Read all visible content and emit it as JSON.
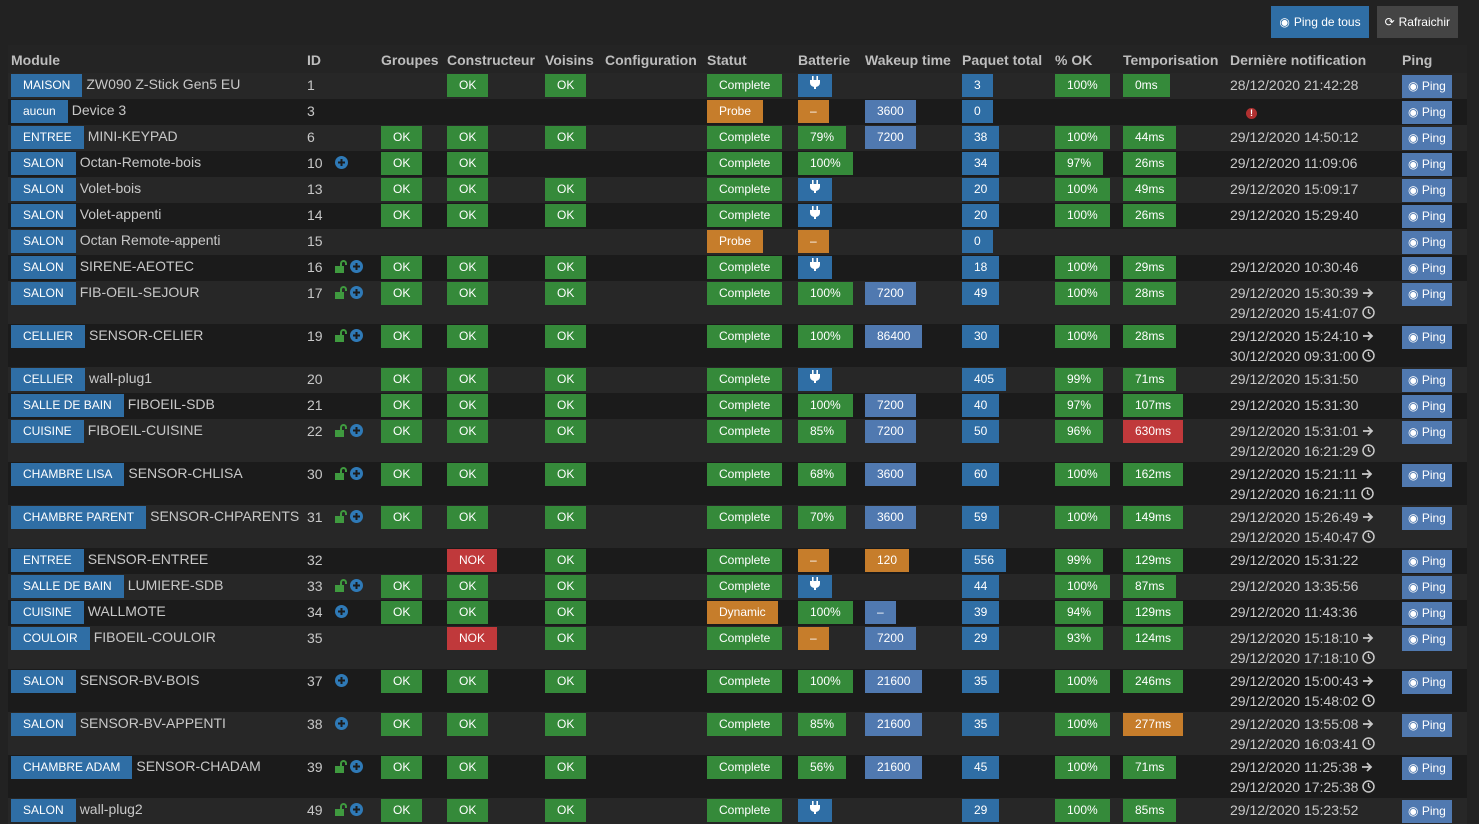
{
  "toolbar": {
    "ping_all": "Ping de tous",
    "refresh": "Rafraichir"
  },
  "colors": {
    "green": "#358a3a",
    "blue": "#2f6ea5",
    "light_blue": "#5079b0",
    "orange": "#c67d2b",
    "red": "#c0393b"
  },
  "headers": [
    "Module",
    "ID",
    "Groupes",
    "Constructeur",
    "Voisins",
    "Configuration",
    "Statut",
    "Batterie",
    "Wakeup time",
    "Paquet total",
    "% OK",
    "Temporisation",
    "Dernière notification",
    "Ping"
  ],
  "ping_label": "Ping",
  "rows": [
    {
      "room": "MAISON",
      "name": "ZW090 Z-Stick Gen5 EU",
      "id": "1",
      "lock": false,
      "plus": false,
      "groupes": "",
      "constructeur": "OK",
      "voisins": "OK",
      "statut": [
        "Complete",
        "g"
      ],
      "batterie": [
        "plug",
        "b"
      ],
      "wakeup": [
        "",
        ""
      ],
      "paquet": "3",
      "pct": "100%",
      "temp": [
        "0ms",
        "g"
      ],
      "notif": [
        [
          "28/12/2020 21:42:28",
          ""
        ]
      ]
    },
    {
      "room": "aucun",
      "name": "Device 3",
      "id": "3",
      "lock": false,
      "plus": false,
      "groupes": "",
      "constructeur": "",
      "voisins": "",
      "statut": [
        "Probe",
        "o"
      ],
      "batterie": [
        "–",
        "o"
      ],
      "wakeup": [
        "3600",
        "lb"
      ],
      "paquet": "0",
      "pct": "",
      "temp": [
        "",
        ""
      ],
      "notif": [
        [
          "!",
          "error"
        ]
      ]
    },
    {
      "room": "ENTREE",
      "name": "MINI-KEYPAD",
      "id": "6",
      "lock": false,
      "plus": false,
      "groupes": "OK",
      "constructeur": "OK",
      "voisins": "OK",
      "statut": [
        "Complete",
        "g"
      ],
      "batterie": [
        "79%",
        "g"
      ],
      "wakeup": [
        "7200",
        "lb"
      ],
      "paquet": "38",
      "pct": "100%",
      "temp": [
        "44ms",
        "g"
      ],
      "notif": [
        [
          "29/12/2020 14:50:12",
          ""
        ]
      ]
    },
    {
      "room": "SALON",
      "name": "Octan-Remote-bois",
      "id": "10",
      "lock": false,
      "plus": true,
      "groupes": "OK",
      "constructeur": "OK",
      "voisins": "",
      "statut": [
        "Complete",
        "g"
      ],
      "batterie": [
        "100%",
        "g"
      ],
      "wakeup": [
        "",
        ""
      ],
      "paquet": "34",
      "pct": "97%",
      "temp": [
        "26ms",
        "g"
      ],
      "notif": [
        [
          "29/12/2020 11:09:06",
          ""
        ]
      ]
    },
    {
      "room": "SALON",
      "name": "Volet-bois",
      "id": "13",
      "lock": false,
      "plus": false,
      "groupes": "OK",
      "constructeur": "OK",
      "voisins": "OK",
      "statut": [
        "Complete",
        "g"
      ],
      "batterie": [
        "plug",
        "b"
      ],
      "wakeup": [
        "",
        ""
      ],
      "paquet": "20",
      "pct": "100%",
      "temp": [
        "49ms",
        "g"
      ],
      "notif": [
        [
          "29/12/2020 15:09:17",
          ""
        ]
      ]
    },
    {
      "room": "SALON",
      "name": "Volet-appenti",
      "id": "14",
      "lock": false,
      "plus": false,
      "groupes": "OK",
      "constructeur": "OK",
      "voisins": "OK",
      "statut": [
        "Complete",
        "g"
      ],
      "batterie": [
        "plug",
        "b"
      ],
      "wakeup": [
        "",
        ""
      ],
      "paquet": "20",
      "pct": "100%",
      "temp": [
        "26ms",
        "g"
      ],
      "notif": [
        [
          "29/12/2020 15:29:40",
          ""
        ]
      ]
    },
    {
      "room": "SALON",
      "name": "Octan Remote-appenti",
      "id": "15",
      "lock": false,
      "plus": false,
      "groupes": "",
      "constructeur": "",
      "voisins": "",
      "statut": [
        "Probe",
        "o"
      ],
      "batterie": [
        "–",
        "o"
      ],
      "wakeup": [
        "",
        ""
      ],
      "paquet": "0",
      "pct": "",
      "temp": [
        "",
        ""
      ],
      "notif": []
    },
    {
      "room": "SALON",
      "name": "SIRENE-AEOTEC",
      "id": "16",
      "lock": true,
      "plus": true,
      "groupes": "OK",
      "constructeur": "OK",
      "voisins": "OK",
      "statut": [
        "Complete",
        "g"
      ],
      "batterie": [
        "plug",
        "b"
      ],
      "wakeup": [
        "",
        ""
      ],
      "paquet": "18",
      "pct": "100%",
      "temp": [
        "29ms",
        "g"
      ],
      "notif": [
        [
          "29/12/2020 10:30:46",
          ""
        ]
      ]
    },
    {
      "room": "SALON",
      "name": "FIB-OEIL-SEJOUR",
      "id": "17",
      "lock": true,
      "plus": true,
      "groupes": "OK",
      "constructeur": "OK",
      "voisins": "OK",
      "statut": [
        "Complete",
        "g"
      ],
      "batterie": [
        "100%",
        "g"
      ],
      "wakeup": [
        "7200",
        "lb"
      ],
      "paquet": "49",
      "pct": "100%",
      "temp": [
        "28ms",
        "g"
      ],
      "notif": [
        [
          "29/12/2020 15:30:39",
          "arrow"
        ],
        [
          "29/12/2020 15:41:07",
          "clock"
        ]
      ]
    },
    {
      "room": "CELLIER",
      "name": "SENSOR-CELIER",
      "id": "19",
      "lock": true,
      "plus": true,
      "groupes": "OK",
      "constructeur": "OK",
      "voisins": "OK",
      "statut": [
        "Complete",
        "g"
      ],
      "batterie": [
        "100%",
        "g"
      ],
      "wakeup": [
        "86400",
        "lb"
      ],
      "paquet": "30",
      "pct": "100%",
      "temp": [
        "28ms",
        "g"
      ],
      "notif": [
        [
          "29/12/2020 15:24:10",
          "arrow"
        ],
        [
          "30/12/2020 09:31:00",
          "clock"
        ]
      ]
    },
    {
      "room": "CELLIER",
      "name": "wall-plug1",
      "id": "20",
      "lock": false,
      "plus": false,
      "groupes": "OK",
      "constructeur": "OK",
      "voisins": "OK",
      "statut": [
        "Complete",
        "g"
      ],
      "batterie": [
        "plug",
        "b"
      ],
      "wakeup": [
        "",
        ""
      ],
      "paquet": "405",
      "pct": "99%",
      "temp": [
        "71ms",
        "g"
      ],
      "notif": [
        [
          "29/12/2020 15:31:50",
          ""
        ]
      ]
    },
    {
      "room": "SALLE DE BAIN",
      "name": "FIBOEIL-SDB",
      "id": "21",
      "lock": false,
      "plus": false,
      "groupes": "OK",
      "constructeur": "OK",
      "voisins": "OK",
      "statut": [
        "Complete",
        "g"
      ],
      "batterie": [
        "100%",
        "g"
      ],
      "wakeup": [
        "7200",
        "lb"
      ],
      "paquet": "40",
      "pct": "97%",
      "temp": [
        "107ms",
        "g"
      ],
      "notif": [
        [
          "29/12/2020 15:31:30",
          ""
        ]
      ]
    },
    {
      "room": "CUISINE",
      "name": "FIBOEIL-CUISINE",
      "id": "22",
      "lock": true,
      "plus": true,
      "groupes": "OK",
      "constructeur": "OK",
      "voisins": "OK",
      "statut": [
        "Complete",
        "g"
      ],
      "batterie": [
        "85%",
        "g"
      ],
      "wakeup": [
        "7200",
        "lb"
      ],
      "paquet": "50",
      "pct": "96%",
      "temp": [
        "630ms",
        "r"
      ],
      "notif": [
        [
          "29/12/2020 15:31:01",
          "arrow"
        ],
        [
          "29/12/2020 16:21:29",
          "clock"
        ]
      ]
    },
    {
      "room": "CHAMBRE LISA",
      "name": "SENSOR-CHLISA",
      "id": "30",
      "lock": true,
      "plus": true,
      "groupes": "OK",
      "constructeur": "OK",
      "voisins": "OK",
      "statut": [
        "Complete",
        "g"
      ],
      "batterie": [
        "68%",
        "g"
      ],
      "wakeup": [
        "3600",
        "lb"
      ],
      "paquet": "60",
      "pct": "100%",
      "temp": [
        "162ms",
        "g"
      ],
      "notif": [
        [
          "29/12/2020 15:21:11",
          "arrow"
        ],
        [
          "29/12/2020 16:21:11",
          "clock"
        ]
      ]
    },
    {
      "room": "CHAMBRE PARENT",
      "name": "SENSOR-CHPARENTS",
      "id": "31",
      "lock": true,
      "plus": true,
      "groupes": "OK",
      "constructeur": "OK",
      "voisins": "OK",
      "statut": [
        "Complete",
        "g"
      ],
      "batterie": [
        "70%",
        "g"
      ],
      "wakeup": [
        "3600",
        "lb"
      ],
      "paquet": "59",
      "pct": "100%",
      "temp": [
        "149ms",
        "g"
      ],
      "notif": [
        [
          "29/12/2020 15:26:49",
          "arrow"
        ],
        [
          "29/12/2020 15:40:47",
          "clock"
        ]
      ]
    },
    {
      "room": "ENTREE",
      "name": "SENSOR-ENTREE",
      "id": "32",
      "lock": false,
      "plus": false,
      "groupes": "",
      "constructeur": "NOK",
      "voisins": "OK",
      "statut": [
        "Complete",
        "g"
      ],
      "batterie": [
        "–",
        "o"
      ],
      "wakeup": [
        "120",
        "o"
      ],
      "paquet": "556",
      "pct": "99%",
      "temp": [
        "129ms",
        "g"
      ],
      "notif": [
        [
          "29/12/2020 15:31:22",
          ""
        ]
      ]
    },
    {
      "room": "SALLE DE BAIN",
      "name": "LUMIERE-SDB",
      "id": "33",
      "lock": true,
      "plus": true,
      "groupes": "OK",
      "constructeur": "OK",
      "voisins": "OK",
      "statut": [
        "Complete",
        "g"
      ],
      "batterie": [
        "plug",
        "b"
      ],
      "wakeup": [
        "",
        ""
      ],
      "paquet": "44",
      "pct": "100%",
      "temp": [
        "87ms",
        "g"
      ],
      "notif": [
        [
          "29/12/2020 13:35:56",
          ""
        ]
      ]
    },
    {
      "room": "CUISINE",
      "name": "WALLMOTE",
      "id": "34",
      "lock": false,
      "plus": true,
      "groupes": "OK",
      "constructeur": "OK",
      "voisins": "OK",
      "statut": [
        "Dynamic",
        "o"
      ],
      "batterie": [
        "100%",
        "g"
      ],
      "wakeup": [
        "–",
        "lb"
      ],
      "paquet": "39",
      "pct": "94%",
      "temp": [
        "129ms",
        "g"
      ],
      "notif": [
        [
          "29/12/2020 11:43:36",
          ""
        ]
      ]
    },
    {
      "room": "COULOIR",
      "name": "FIBOEIL-COULOIR",
      "id": "35",
      "lock": false,
      "plus": false,
      "groupes": "",
      "constructeur": "NOK",
      "voisins": "OK",
      "statut": [
        "Complete",
        "g"
      ],
      "batterie": [
        "–",
        "o"
      ],
      "wakeup": [
        "7200",
        "lb"
      ],
      "paquet": "29",
      "pct": "93%",
      "temp": [
        "124ms",
        "g"
      ],
      "notif": [
        [
          "29/12/2020 15:18:10",
          "arrow"
        ],
        [
          "29/12/2020 17:18:10",
          "clock"
        ]
      ]
    },
    {
      "room": "SALON",
      "name": "SENSOR-BV-BOIS",
      "id": "37",
      "lock": false,
      "plus": true,
      "groupes": "OK",
      "constructeur": "OK",
      "voisins": "OK",
      "statut": [
        "Complete",
        "g"
      ],
      "batterie": [
        "100%",
        "g"
      ],
      "wakeup": [
        "21600",
        "lb"
      ],
      "paquet": "35",
      "pct": "100%",
      "temp": [
        "246ms",
        "g"
      ],
      "notif": [
        [
          "29/12/2020 15:00:43",
          "arrow"
        ],
        [
          "29/12/2020 15:48:02",
          "clock"
        ]
      ]
    },
    {
      "room": "SALON",
      "name": "SENSOR-BV-APPENTI",
      "id": "38",
      "lock": false,
      "plus": true,
      "groupes": "OK",
      "constructeur": "OK",
      "voisins": "OK",
      "statut": [
        "Complete",
        "g"
      ],
      "batterie": [
        "85%",
        "g"
      ],
      "wakeup": [
        "21600",
        "lb"
      ],
      "paquet": "35",
      "pct": "100%",
      "temp": [
        "277ms",
        "o"
      ],
      "notif": [
        [
          "29/12/2020 13:55:08",
          "arrow"
        ],
        [
          "29/12/2020 16:03:41",
          "clock"
        ]
      ]
    },
    {
      "room": "CHAMBRE ADAM",
      "name": "SENSOR-CHADAM",
      "id": "39",
      "lock": true,
      "plus": true,
      "groupes": "OK",
      "constructeur": "OK",
      "voisins": "OK",
      "statut": [
        "Complete",
        "g"
      ],
      "batterie": [
        "56%",
        "g"
      ],
      "wakeup": [
        "21600",
        "lb"
      ],
      "paquet": "45",
      "pct": "100%",
      "temp": [
        "71ms",
        "g"
      ],
      "notif": [
        [
          "29/12/2020 11:25:38",
          "arrow"
        ],
        [
          "29/12/2020 17:25:38",
          "clock"
        ]
      ]
    },
    {
      "room": "SALON",
      "name": "wall-plug2",
      "id": "49",
      "lock": true,
      "plus": true,
      "groupes": "OK",
      "constructeur": "OK",
      "voisins": "OK",
      "statut": [
        "Complete",
        "g"
      ],
      "batterie": [
        "plug",
        "b"
      ],
      "wakeup": [
        "",
        ""
      ],
      "paquet": "29",
      "pct": "100%",
      "temp": [
        "85ms",
        "g"
      ],
      "notif": [
        [
          "29/12/2020 15:23:52",
          ""
        ]
      ]
    }
  ]
}
